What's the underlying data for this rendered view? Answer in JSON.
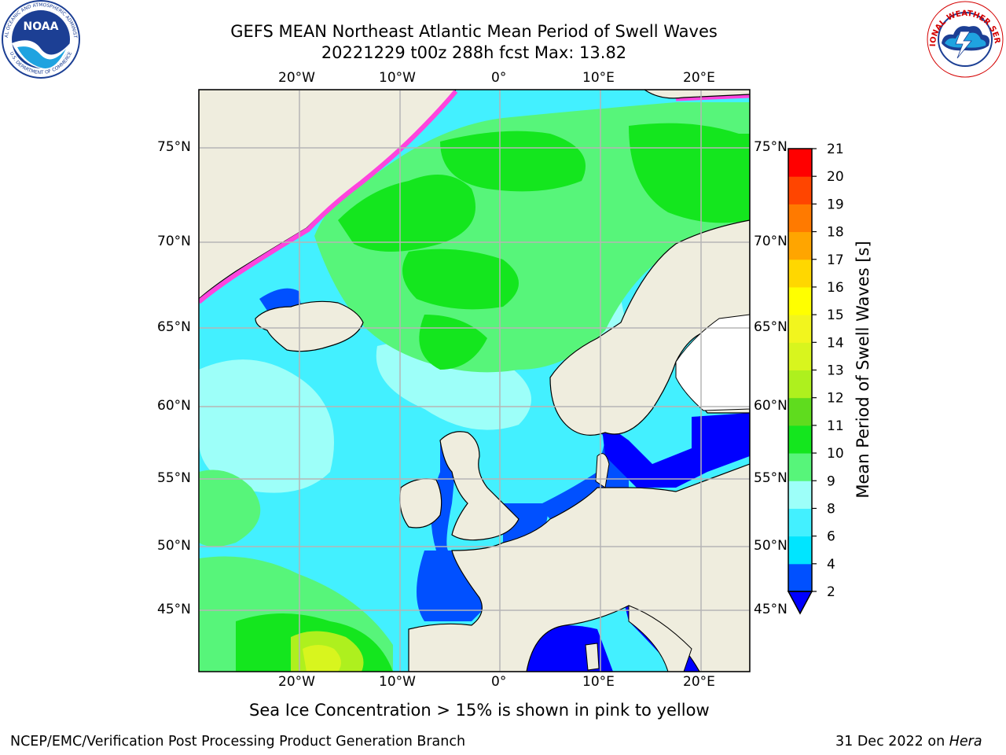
{
  "title": {
    "line1": "GEFS MEAN Northeast Atlantic Mean Period of Swell Waves",
    "line2": "20221229 t00z 288h fcst   Max: 13.82"
  },
  "map": {
    "lon_labels_top": [
      "20°W",
      "10°W",
      "0°",
      "10°E",
      "20°E"
    ],
    "lon_labels_bottom": [
      "20°W",
      "10°W",
      "0°",
      "10°E",
      "20°E"
    ],
    "lat_labels_left": [
      "75°N",
      "70°N",
      "65°N",
      "60°N",
      "55°N",
      "50°N",
      "45°N"
    ],
    "lat_labels_right": [
      "75°N",
      "70°N",
      "65°N",
      "60°N",
      "55°N",
      "50°N",
      "45°N"
    ],
    "land_color": "#efedde",
    "ice_note": "Sea Ice Concentration > 15% is shown in pink to yellow"
  },
  "colorbar": {
    "label": "Mean Period of Swell Waves [s]",
    "ticks": [
      "2",
      "4",
      "6",
      "8",
      "9",
      "10",
      "11",
      "12",
      "13",
      "14",
      "15",
      "16",
      "17",
      "18",
      "19",
      "20",
      "21"
    ],
    "colors": [
      "#0050ff",
      "#00e5ff",
      "#43f0ff",
      "#9dfff9",
      "#57f57a",
      "#14e61e",
      "#5fdc1e",
      "#aef01e",
      "#d8f51e",
      "#f2f51e",
      "#ffff00",
      "#ffd700",
      "#ffa500",
      "#ff7a00",
      "#ff4500",
      "#ff2200",
      "#ff0000"
    ],
    "under_color": "#0000ff"
  },
  "footer": {
    "left": "NCEP/EMC/Verification Post Processing Product Generation Branch",
    "right_date": "31 Dec 2022 on ",
    "right_machine": "Hera"
  },
  "logos": {
    "noaa_text": "NOAA",
    "noaa_ring_top": "NATIONAL OCEANIC AND ATMOSPHERIC ADMINISTRATION",
    "noaa_ring_bottom": "U.S. DEPARTMENT OF COMMERCE",
    "nws_ring": "NATIONAL WEATHER SERVICE"
  }
}
